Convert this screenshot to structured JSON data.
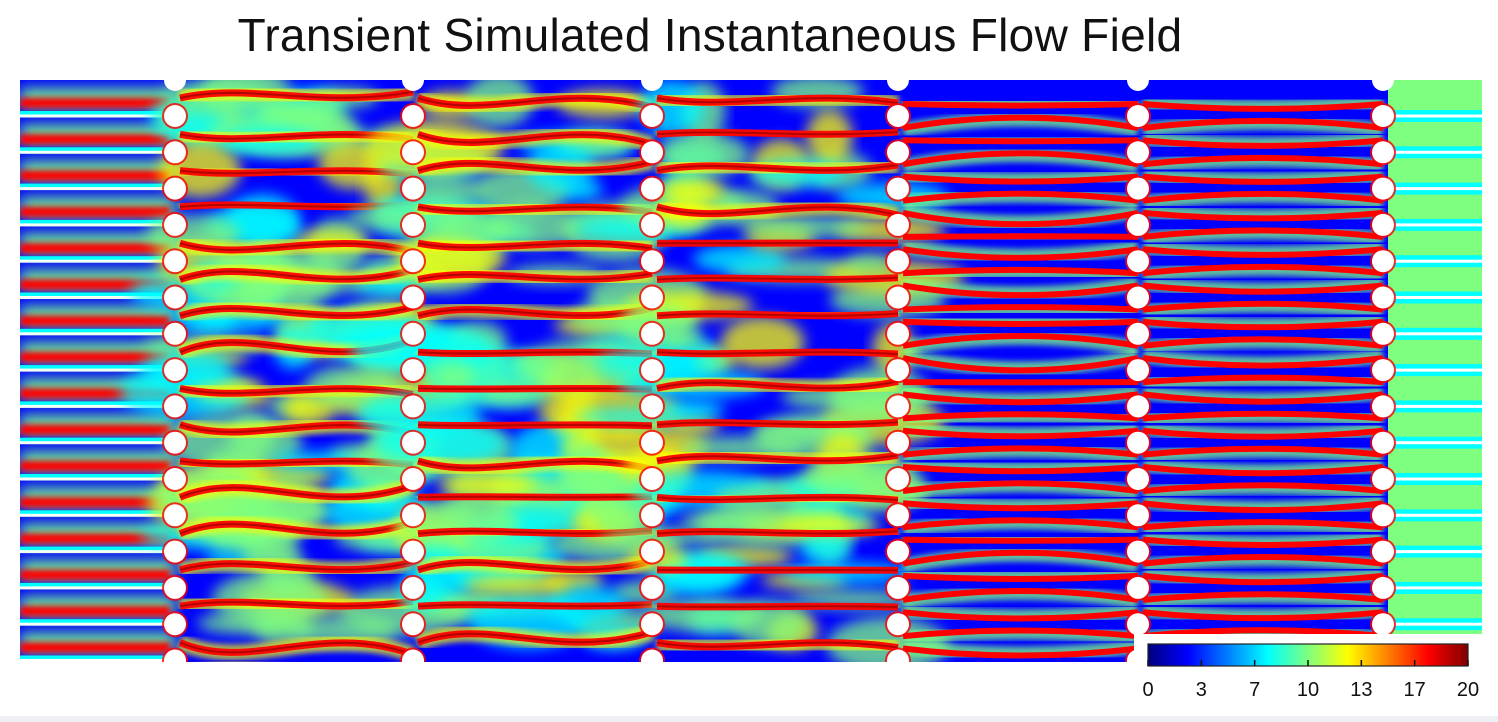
{
  "title": "Transient Simulated Instantaneous Flow Field",
  "colors": {
    "background": "#ffffff",
    "scale": [
      "#00007f",
      "#0000ff",
      "#007fff",
      "#00ffff",
      "#7fff7f",
      "#ffff00",
      "#ff7f00",
      "#ff0000",
      "#7f0000"
    ]
  },
  "colorbar": {
    "min": 0,
    "max": 20,
    "ticks": [
      "0",
      "3",
      "7",
      "10",
      "13",
      "17",
      "20"
    ]
  },
  "field": {
    "description_free": true,
    "columns": 6,
    "rows": 16
  }
}
